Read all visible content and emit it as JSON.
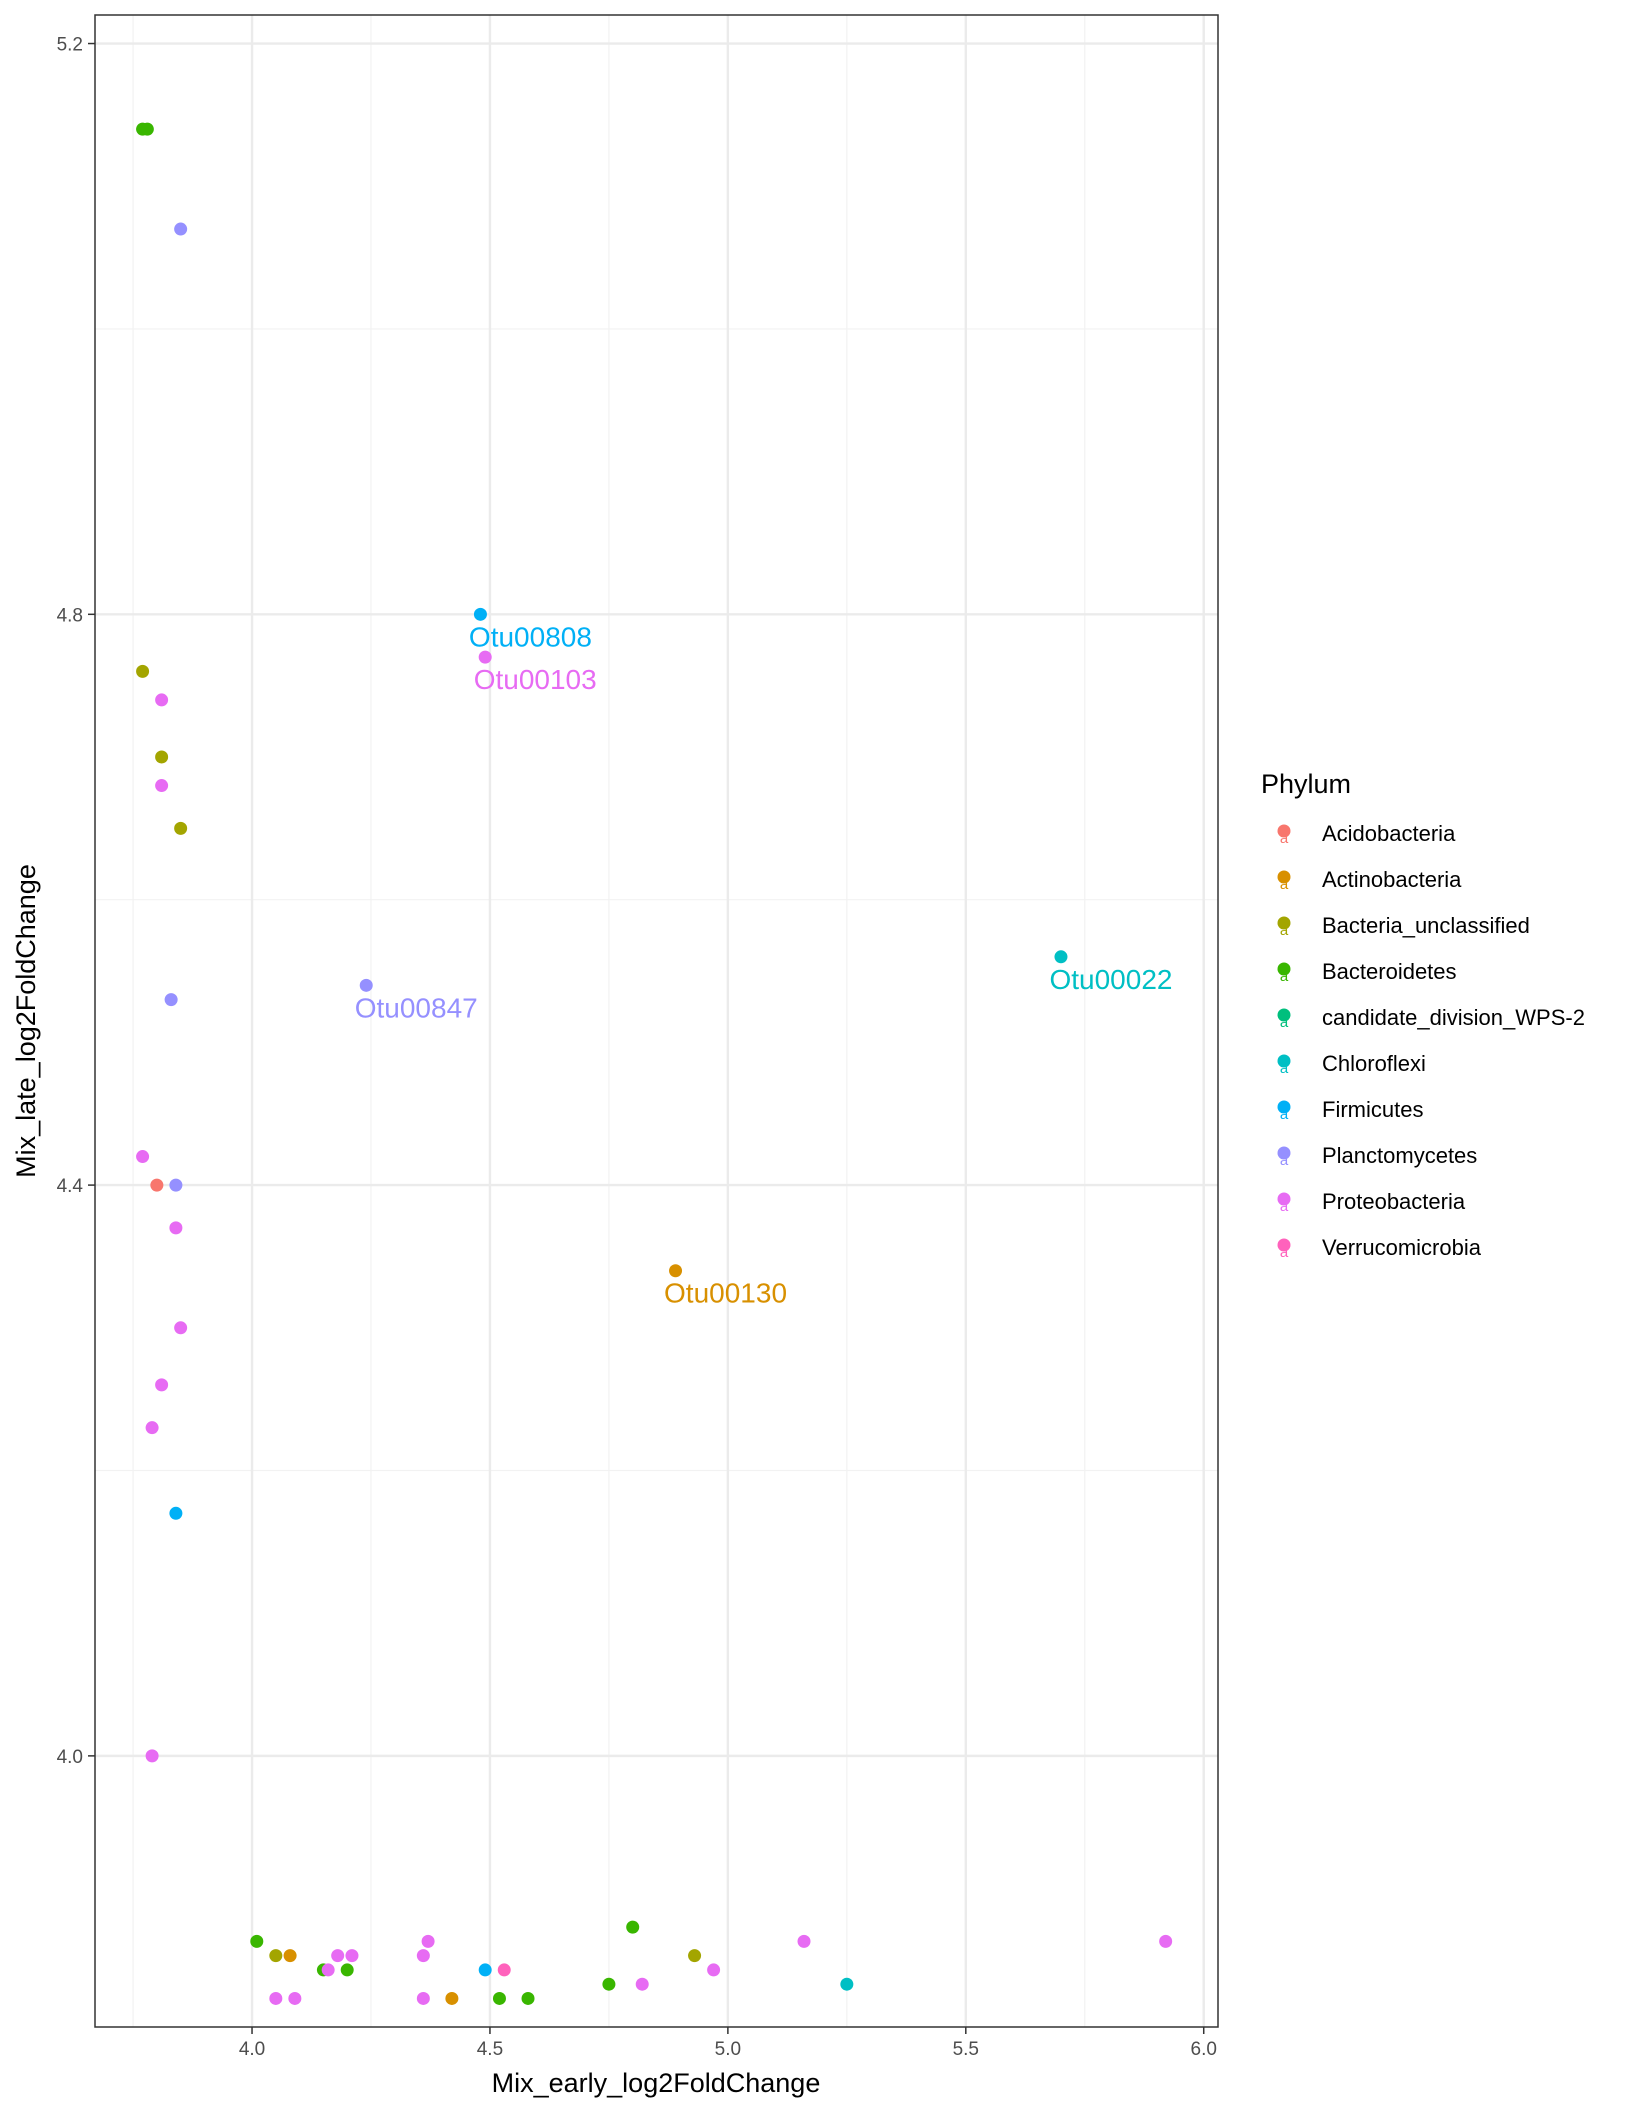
{
  "chart_data": {
    "type": "scatter",
    "xlabel": "Mix_early_log2FoldChange",
    "ylabel": "Mix_late_log2FoldChange",
    "xlim": [
      3.67,
      6.03
    ],
    "ylim": [
      3.81,
      5.22
    ],
    "x_ticks": [
      4.0,
      4.5,
      5.0,
      5.5,
      6.0
    ],
    "x_tick_labels": [
      "4.0",
      "4.5",
      "5.0",
      "5.5",
      "6.0"
    ],
    "y_ticks": [
      4.0,
      4.4,
      4.8,
      5.2
    ],
    "y_tick_labels": [
      "4.0",
      "4.4",
      "4.8",
      "5.2"
    ],
    "grid": true,
    "legend": {
      "title": "Phylum",
      "placement": "right",
      "key_glyph": "a",
      "entries": [
        {
          "name": "Acidobacteria",
          "color": "#F8766D"
        },
        {
          "name": "Actinobacteria",
          "color": "#D89000"
        },
        {
          "name": "Bacteria_unclassified",
          "color": "#A3A500"
        },
        {
          "name": "Bacteroidetes",
          "color": "#39B600"
        },
        {
          "name": "candidate_division_WPS-2",
          "color": "#00BF7D"
        },
        {
          "name": "Chloroflexi",
          "color": "#00BFC4"
        },
        {
          "name": "Firmicutes",
          "color": "#00B0F6"
        },
        {
          "name": "Planctomycetes",
          "color": "#9590FF"
        },
        {
          "name": "Proteobacteria",
          "color": "#E76BF3"
        },
        {
          "name": "Verrucomicrobia",
          "color": "#FF62BC"
        }
      ]
    },
    "points": [
      {
        "x": 3.77,
        "y": 5.14,
        "phylum": "Bacteroidetes"
      },
      {
        "x": 3.78,
        "y": 5.14,
        "phylum": "Bacteroidetes"
      },
      {
        "x": 3.85,
        "y": 5.07,
        "phylum": "Planctomycetes"
      },
      {
        "x": 3.77,
        "y": 4.76,
        "phylum": "Bacteria_unclassified"
      },
      {
        "x": 3.81,
        "y": 4.74,
        "phylum": "Proteobacteria"
      },
      {
        "x": 3.81,
        "y": 4.7,
        "phylum": "Bacteria_unclassified"
      },
      {
        "x": 3.81,
        "y": 4.68,
        "phylum": "Proteobacteria"
      },
      {
        "x": 3.85,
        "y": 4.65,
        "phylum": "Bacteria_unclassified"
      },
      {
        "x": 3.83,
        "y": 4.53,
        "phylum": "Planctomycetes"
      },
      {
        "x": 3.77,
        "y": 4.42,
        "phylum": "Proteobacteria"
      },
      {
        "x": 3.8,
        "y": 4.4,
        "phylum": "Acidobacteria"
      },
      {
        "x": 3.84,
        "y": 4.4,
        "phylum": "Planctomycetes"
      },
      {
        "x": 3.84,
        "y": 4.37,
        "phylum": "Proteobacteria"
      },
      {
        "x": 3.85,
        "y": 4.3,
        "phylum": "Proteobacteria"
      },
      {
        "x": 3.81,
        "y": 4.26,
        "phylum": "Proteobacteria"
      },
      {
        "x": 3.79,
        "y": 4.23,
        "phylum": "Proteobacteria"
      },
      {
        "x": 3.84,
        "y": 4.17,
        "phylum": "Firmicutes"
      },
      {
        "x": 3.79,
        "y": 4.0,
        "phylum": "Proteobacteria"
      },
      {
        "x": 4.48,
        "y": 4.8,
        "phylum": "Firmicutes",
        "label": "Otu00808"
      },
      {
        "x": 4.49,
        "y": 4.77,
        "phylum": "Proteobacteria",
        "label": "Otu00103"
      },
      {
        "x": 5.7,
        "y": 4.56,
        "phylum": "Chloroflexi",
        "label": "Otu00022"
      },
      {
        "x": 4.24,
        "y": 4.54,
        "phylum": "Planctomycetes",
        "label": "Otu00847"
      },
      {
        "x": 4.89,
        "y": 4.34,
        "phylum": "Actinobacteria",
        "label": "Otu00130"
      },
      {
        "x": 4.01,
        "y": 3.87,
        "phylum": "Bacteroidetes"
      },
      {
        "x": 4.05,
        "y": 3.86,
        "phylum": "Bacteria_unclassified"
      },
      {
        "x": 4.08,
        "y": 3.86,
        "phylum": "Actinobacteria"
      },
      {
        "x": 4.05,
        "y": 3.83,
        "phylum": "Proteobacteria"
      },
      {
        "x": 4.09,
        "y": 3.83,
        "phylum": "Proteobacteria"
      },
      {
        "x": 4.15,
        "y": 3.85,
        "phylum": "Bacteroidetes"
      },
      {
        "x": 4.16,
        "y": 3.85,
        "phylum": "Proteobacteria"
      },
      {
        "x": 4.18,
        "y": 3.86,
        "phylum": "Proteobacteria"
      },
      {
        "x": 4.2,
        "y": 3.85,
        "phylum": "Bacteroidetes"
      },
      {
        "x": 4.21,
        "y": 3.86,
        "phylum": "Proteobacteria"
      },
      {
        "x": 4.36,
        "y": 3.86,
        "phylum": "Proteobacteria"
      },
      {
        "x": 4.37,
        "y": 3.87,
        "phylum": "Proteobacteria"
      },
      {
        "x": 4.36,
        "y": 3.83,
        "phylum": "Proteobacteria"
      },
      {
        "x": 4.42,
        "y": 3.83,
        "phylum": "Actinobacteria"
      },
      {
        "x": 4.49,
        "y": 3.85,
        "phylum": "Firmicutes"
      },
      {
        "x": 4.53,
        "y": 3.85,
        "phylum": "Verrucomicrobia"
      },
      {
        "x": 4.52,
        "y": 3.83,
        "phylum": "Bacteroidetes"
      },
      {
        "x": 4.58,
        "y": 3.83,
        "phylum": "Bacteroidetes"
      },
      {
        "x": 4.75,
        "y": 3.84,
        "phylum": "Bacteroidetes"
      },
      {
        "x": 4.8,
        "y": 3.88,
        "phylum": "Bacteroidetes"
      },
      {
        "x": 4.82,
        "y": 3.84,
        "phylum": "Proteobacteria"
      },
      {
        "x": 4.93,
        "y": 3.86,
        "phylum": "Bacteria_unclassified"
      },
      {
        "x": 4.97,
        "y": 3.85,
        "phylum": "Proteobacteria"
      },
      {
        "x": 5.16,
        "y": 3.87,
        "phylum": "Proteobacteria"
      },
      {
        "x": 5.25,
        "y": 3.84,
        "phylum": "Chloroflexi"
      },
      {
        "x": 5.92,
        "y": 3.87,
        "phylum": "Proteobacteria"
      }
    ]
  }
}
